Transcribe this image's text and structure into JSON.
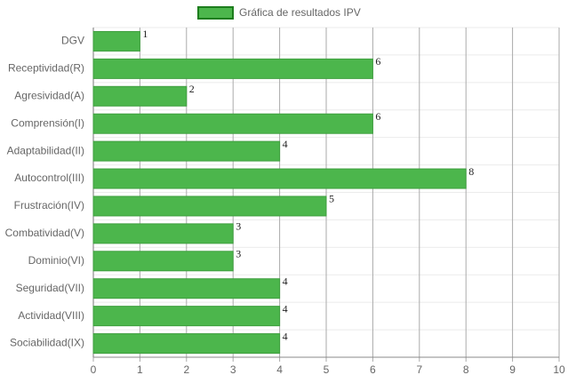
{
  "chart_data": {
    "type": "bar",
    "orientation": "horizontal",
    "categories": [
      "DGV",
      "Receptividad(R)",
      "Agresividad(A)",
      "Comprensión(I)",
      "Adaptabilidad(II)",
      "Autocontrol(III)",
      "Frustración(IV)",
      "Combatividad(V)",
      "Dominio(VI)",
      "Seguridad(VII)",
      "Actividad(VIII)",
      "Sociabilidad(IX)"
    ],
    "series": [
      {
        "name": "Gráfica de resultados IPV",
        "color": "#4cb64c",
        "values": [
          1,
          6,
          2,
          6,
          4,
          8,
          5,
          3,
          3,
          4,
          4,
          4
        ]
      }
    ],
    "xlim": [
      0,
      10
    ],
    "xticks": [
      0,
      1,
      2,
      3,
      4,
      5,
      6,
      7,
      8,
      9,
      10
    ],
    "grid": true,
    "legend": "top"
  }
}
